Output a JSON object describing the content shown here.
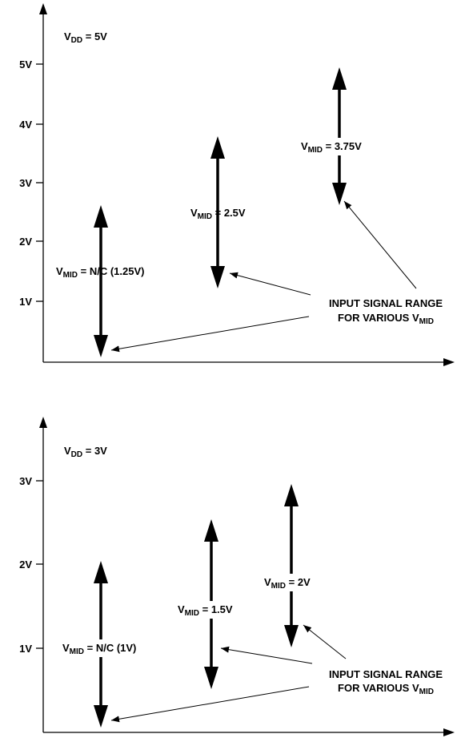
{
  "panels": [
    {
      "vdd": {
        "main": "V",
        "sub": "DD",
        "rest": " = 5V"
      },
      "ticks": [
        "5V",
        "4V",
        "3V",
        "2V",
        "1V"
      ],
      "ranges": [
        {
          "main": "V",
          "sub": "MID",
          "rest": " = N/C (1.25V)",
          "low": 0,
          "high": 2.5
        },
        {
          "main": "V",
          "sub": "MID",
          "rest": " = 2.5V",
          "low": 1.25,
          "high": 3.75
        },
        {
          "main": "V",
          "sub": "MID",
          "rest": " = 3.75V",
          "low": 2.5,
          "high": 5
        }
      ],
      "note": {
        "line1": "INPUT SIGNAL RANGE",
        "line2_main": "FOR VARIOUS V",
        "line2_sub": "MID"
      }
    },
    {
      "vdd": {
        "main": "V",
        "sub": "DD",
        "rest": " = 3V"
      },
      "ticks": [
        "3V",
        "2V",
        "1V"
      ],
      "ranges": [
        {
          "main": "V",
          "sub": "MID",
          "rest": " = N/C (1V)",
          "low": 0,
          "high": 2
        },
        {
          "main": "V",
          "sub": "MID",
          "rest": " = 1.5V",
          "low": 0.5,
          "high": 2.5
        },
        {
          "main": "V",
          "sub": "MID",
          "rest": " = 2V",
          "low": 1,
          "high": 3
        }
      ],
      "note": {
        "line1": "INPUT SIGNAL RANGE",
        "line2_main": "FOR VARIOUS V",
        "line2_sub": "MID"
      }
    }
  ]
}
